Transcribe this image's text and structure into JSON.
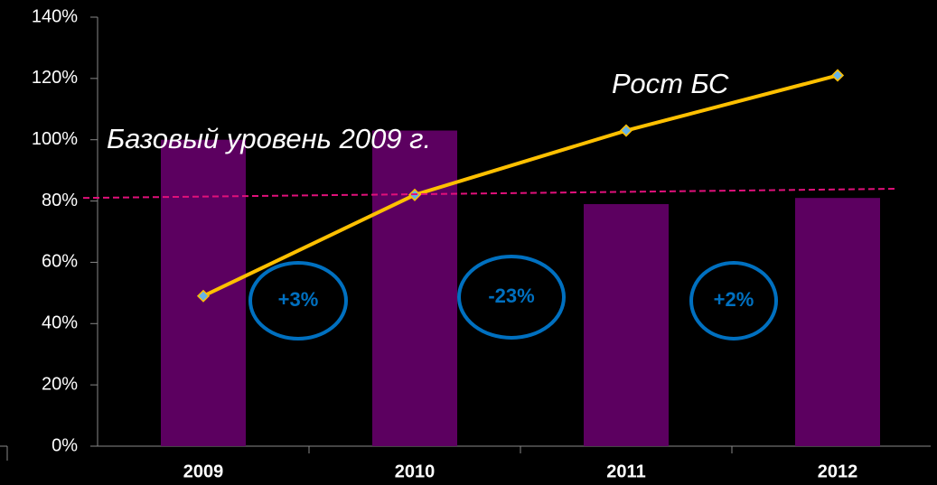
{
  "chart_data": {
    "type": "bar",
    "categories": [
      "2009",
      "2010",
      "2011",
      "2012"
    ],
    "series": [
      {
        "type": "bar",
        "color": "#5c0060",
        "values": [
          100,
          103,
          79,
          81
        ]
      },
      {
        "type": "line",
        "name": "Рост БС",
        "color": "#ffc000",
        "marker_color": "#66b3e6",
        "values": [
          49,
          82,
          103,
          121
        ]
      }
    ],
    "ylim": [
      0,
      140
    ],
    "yticks": [
      {
        "value": 0,
        "label": "0%"
      },
      {
        "value": 20,
        "label": "20%"
      },
      {
        "value": 40,
        "label": "40%"
      },
      {
        "value": 60,
        "label": "60%"
      },
      {
        "value": 80,
        "label": "80%"
      },
      {
        "value": 100,
        "label": "100%"
      },
      {
        "value": 120,
        "label": "120%"
      },
      {
        "value": 140,
        "label": "140%"
      }
    ],
    "baseline": {
      "label": "Базовый уровень 2009 г.",
      "values": [
        81,
        84
      ],
      "color": "#e0107a"
    },
    "changes": [
      {
        "label": "+3%",
        "color": "#0070c0"
      },
      {
        "label": "-23%",
        "color": "#0070c0"
      },
      {
        "label": "+2%",
        "color": "#0070c0"
      }
    ]
  }
}
